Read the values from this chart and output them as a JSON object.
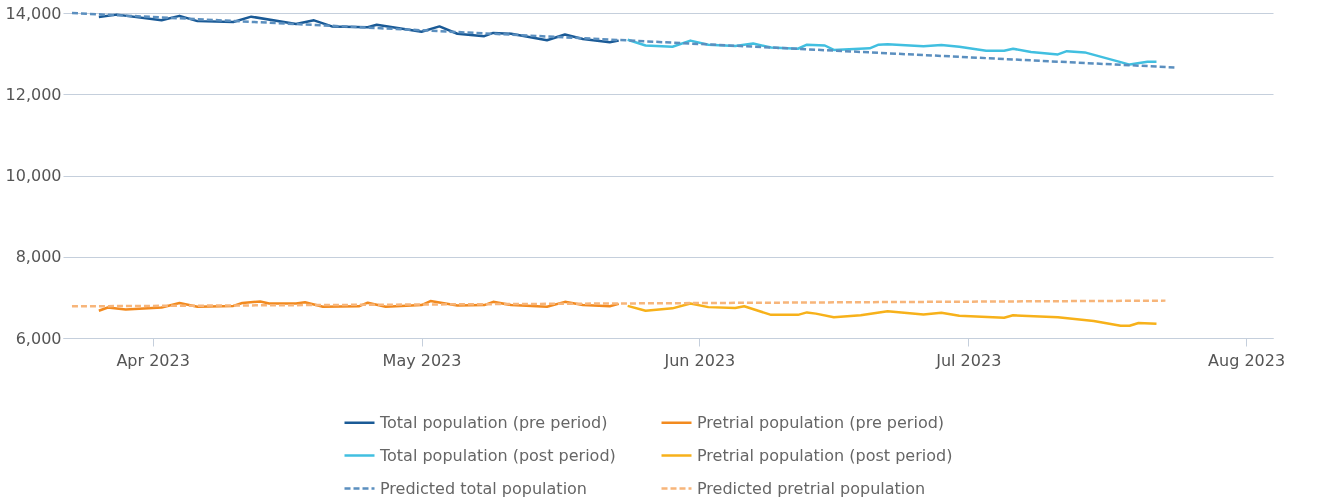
{
  "chart_data": {
    "type": "line",
    "legend": "bottom",
    "grid": "y",
    "xlim": [
      "2023-03-22",
      "2023-08-04"
    ],
    "xticks": [
      {
        "value": "2023-04-01",
        "label": "Apr 2023"
      },
      {
        "value": "2023-05-01",
        "label": "May 2023"
      },
      {
        "value": "2023-06-01",
        "label": "Jun 2023"
      },
      {
        "value": "2023-07-01",
        "label": "Jul 2023"
      },
      {
        "value": "2023-08-01",
        "label": "Aug 2023"
      }
    ],
    "ylim": [
      6000,
      14000
    ],
    "yticks": [
      {
        "value": 6000,
        "label": "6,000"
      },
      {
        "value": 8000,
        "label": "8,000"
      },
      {
        "value": 10000,
        "label": "10,000"
      },
      {
        "value": 12000,
        "label": "12,000"
      },
      {
        "value": 14000,
        "label": "14,000"
      }
    ],
    "series": [
      {
        "name": "Total population (pre period)",
        "color": "#1a5a96",
        "line_style": "solid",
        "x": [
          "2023-03-26",
          "2023-03-28",
          "2023-04-02",
          "2023-04-04",
          "2023-04-06",
          "2023-04-10",
          "2023-04-12",
          "2023-04-17",
          "2023-04-19",
          "2023-04-21",
          "2023-04-25",
          "2023-04-26",
          "2023-05-01",
          "2023-05-03",
          "2023-05-05",
          "2023-05-08",
          "2023-05-09",
          "2023-05-11",
          "2023-05-15",
          "2023-05-17",
          "2023-05-19",
          "2023-05-22",
          "2023-05-23"
        ],
        "values": [
          13900,
          13960,
          13820,
          13930,
          13800,
          13780,
          13910,
          13730,
          13820,
          13670,
          13650,
          13710,
          13540,
          13670,
          13490,
          13430,
          13510,
          13490,
          13330,
          13470,
          13360,
          13280,
          13320
        ]
      },
      {
        "name": "Pretrial population (pre period)",
        "color": "#f28a1f",
        "line_style": "solid",
        "x": [
          "2023-03-26",
          "2023-03-27",
          "2023-03-29",
          "2023-04-02",
          "2023-04-04",
          "2023-04-06",
          "2023-04-10",
          "2023-04-11",
          "2023-04-13",
          "2023-04-14",
          "2023-04-17",
          "2023-04-18",
          "2023-04-20",
          "2023-04-24",
          "2023-04-25",
          "2023-04-27",
          "2023-05-01",
          "2023-05-02",
          "2023-05-05",
          "2023-05-08",
          "2023-05-09",
          "2023-05-11",
          "2023-05-15",
          "2023-05-17",
          "2023-05-19",
          "2023-05-22",
          "2023-05-23"
        ],
        "values": [
          6670,
          6750,
          6700,
          6750,
          6860,
          6770,
          6790,
          6860,
          6900,
          6850,
          6850,
          6880,
          6770,
          6780,
          6870,
          6770,
          6810,
          6910,
          6800,
          6810,
          6890,
          6810,
          6770,
          6890,
          6810,
          6780,
          6840
        ]
      },
      {
        "name": "Total population (post period)",
        "color": "#41bfe0",
        "line_style": "solid",
        "x": [
          "2023-05-24",
          "2023-05-26",
          "2023-05-29",
          "2023-05-31",
          "2023-06-02",
          "2023-06-05",
          "2023-06-07",
          "2023-06-09",
          "2023-06-12",
          "2023-06-13",
          "2023-06-15",
          "2023-06-16",
          "2023-06-20",
          "2023-06-21",
          "2023-06-22",
          "2023-06-26",
          "2023-06-28",
          "2023-06-30",
          "2023-07-03",
          "2023-07-05",
          "2023-07-06",
          "2023-07-08",
          "2023-07-11",
          "2023-07-12",
          "2023-07-14",
          "2023-07-18",
          "2023-07-19",
          "2023-07-21",
          "2023-07-22"
        ],
        "values": [
          13340,
          13200,
          13170,
          13320,
          13220,
          13190,
          13250,
          13150,
          13120,
          13220,
          13200,
          13090,
          13130,
          13220,
          13230,
          13180,
          13210,
          13170,
          13070,
          13070,
          13120,
          13040,
          12980,
          13060,
          13030,
          12790,
          12730,
          12800,
          12800
        ]
      },
      {
        "name": "Pretrial population (post period)",
        "color": "#f7b11a",
        "line_style": "solid",
        "x": [
          "2023-05-24",
          "2023-05-26",
          "2023-05-29",
          "2023-05-31",
          "2023-06-02",
          "2023-06-05",
          "2023-06-06",
          "2023-06-09",
          "2023-06-12",
          "2023-06-13",
          "2023-06-14",
          "2023-06-16",
          "2023-06-19",
          "2023-06-22",
          "2023-06-26",
          "2023-06-28",
          "2023-06-30",
          "2023-07-05",
          "2023-07-06",
          "2023-07-11",
          "2023-07-15",
          "2023-07-18",
          "2023-07-19",
          "2023-07-20",
          "2023-07-22"
        ],
        "values": [
          6790,
          6670,
          6730,
          6850,
          6760,
          6740,
          6780,
          6570,
          6570,
          6630,
          6600,
          6510,
          6560,
          6660,
          6580,
          6620,
          6550,
          6500,
          6560,
          6510,
          6420,
          6300,
          6300,
          6370,
          6350
        ]
      },
      {
        "name": "Predicted total population",
        "color": "#5b8fbf",
        "line_style": "dashed",
        "x": [
          "2023-03-23",
          "2023-07-24"
        ],
        "values": [
          14000,
          12660
        ]
      },
      {
        "name": "Predicted pretrial population",
        "color": "#f7b57a",
        "line_style": "dashed",
        "x": [
          "2023-03-23",
          "2023-07-23"
        ],
        "values": [
          6780,
          6920
        ]
      }
    ]
  }
}
